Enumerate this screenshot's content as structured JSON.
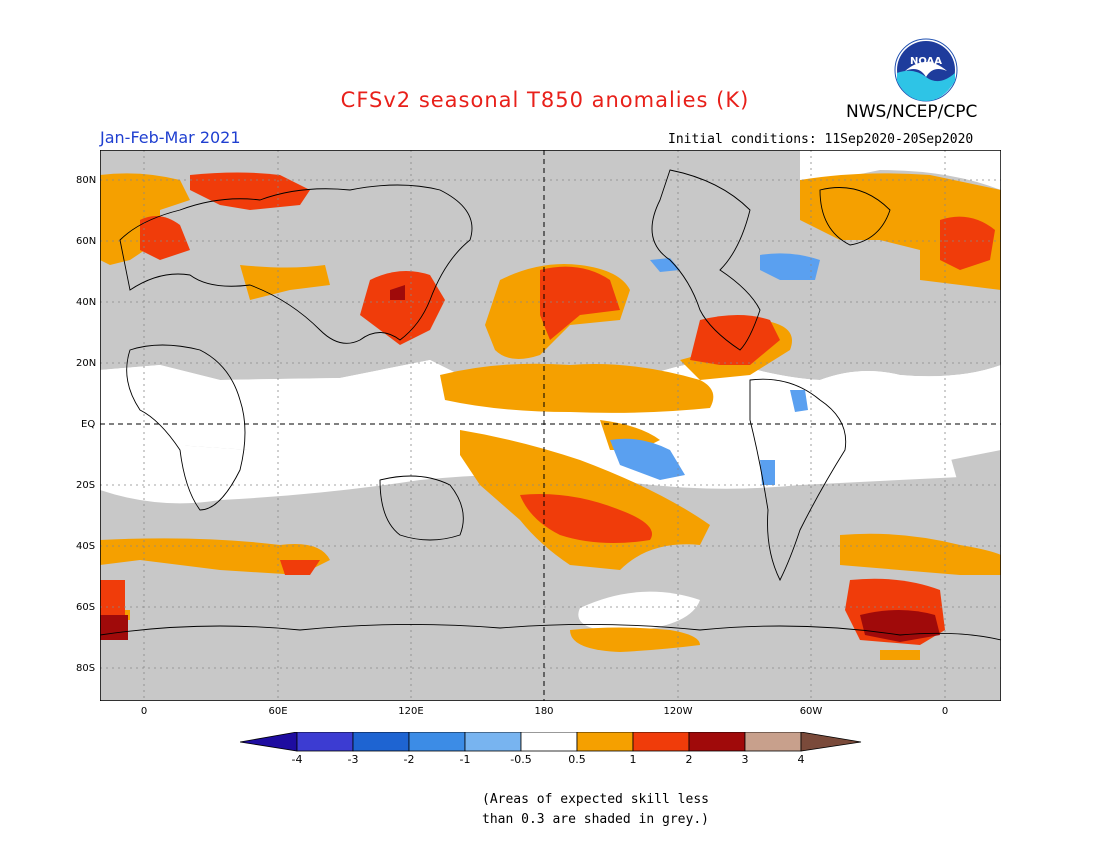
{
  "header": {
    "title": "CFSv2 seasonal T850 anomalies (K)",
    "agency": "NWS/NCEP/CPC",
    "season": "Jan-Feb-Mar 2021",
    "initial_conditions": "Initial conditions: 11Sep2020-20Sep2020",
    "logo_text": "NOAA"
  },
  "map": {
    "lat_labels": [
      "80N",
      "60N",
      "40N",
      "20N",
      "EQ",
      "20S",
      "40S",
      "60S",
      "80S"
    ],
    "lon_labels": [
      "0",
      "60E",
      "120E",
      "180",
      "120W",
      "60W",
      "0"
    ],
    "colors": {
      "grey_low_skill": "#c8c8c8",
      "blue_-1": "#5aa0f0",
      "blue_-0.5": "#7ab8f5",
      "orange_0.5": "#f5a000",
      "red_1": "#f03c0a",
      "darkred_2": "#a00a0a"
    }
  },
  "colorbar": {
    "labels": [
      "-4",
      "-3",
      "-2",
      "-1",
      "-0.5",
      "0.5",
      "1",
      "2",
      "3",
      "4"
    ],
    "colors": [
      "#1e0ca0",
      "#3c3cd2",
      "#1e64d2",
      "#3c8ce6",
      "#78b4f0",
      "#ffffff",
      "#f5a000",
      "#f03c0a",
      "#a00a0a",
      "#c8a08c",
      "#7a4a3a"
    ]
  },
  "note": {
    "line1": "(Areas of expected skill less",
    "line2": "than 0.3 are shaded in grey.)"
  }
}
